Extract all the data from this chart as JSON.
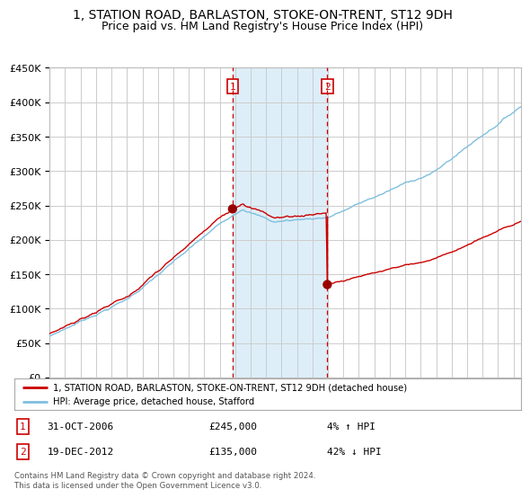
{
  "title": "1, STATION ROAD, BARLASTON, STOKE-ON-TRENT, ST12 9DH",
  "subtitle": "Price paid vs. HM Land Registry's House Price Index (HPI)",
  "ylim": [
    0,
    450000
  ],
  "yticks": [
    0,
    50000,
    100000,
    150000,
    200000,
    250000,
    300000,
    350000,
    400000,
    450000
  ],
  "year_start": 1995,
  "year_end": 2025,
  "transaction1_date": 2006.83,
  "transaction1_price": 245000,
  "transaction1_label": "1",
  "transaction1_date_str": "31-OCT-2006",
  "transaction1_pct": "4% ↑ HPI",
  "transaction2_date": 2012.96,
  "transaction2_price": 135000,
  "transaction2_label": "2",
  "transaction2_date_str": "19-DEC-2012",
  "transaction2_pct": "42% ↓ HPI",
  "hpi_color": "#7fbfdf",
  "price_color": "#cc0000",
  "background_color": "#ffffff",
  "plot_bg_color": "#ffffff",
  "shading_color": "#ddeef8",
  "legend_line1": "1, STATION ROAD, BARLASTON, STOKE-ON-TRENT, ST12 9DH (detached house)",
  "legend_line2": "HPI: Average price, detached house, Stafford",
  "copyright_text": "Contains HM Land Registry data © Crown copyright and database right 2024.\nThis data is licensed under the Open Government Licence v3.0.",
  "title_fontsize": 10,
  "subtitle_fontsize": 9
}
